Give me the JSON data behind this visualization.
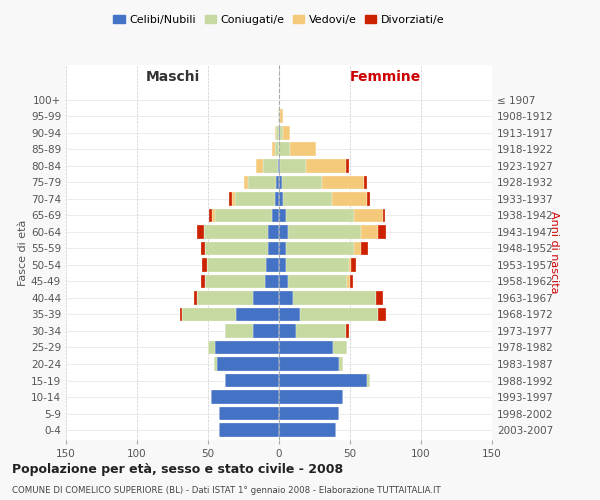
{
  "age_groups": [
    "0-4",
    "5-9",
    "10-14",
    "15-19",
    "20-24",
    "25-29",
    "30-34",
    "35-39",
    "40-44",
    "45-49",
    "50-54",
    "55-59",
    "60-64",
    "65-69",
    "70-74",
    "75-79",
    "80-84",
    "85-89",
    "90-94",
    "95-99",
    "100+"
  ],
  "birth_years": [
    "2003-2007",
    "1998-2002",
    "1993-1997",
    "1988-1992",
    "1983-1987",
    "1978-1982",
    "1973-1977",
    "1968-1972",
    "1963-1967",
    "1958-1962",
    "1953-1957",
    "1948-1952",
    "1943-1947",
    "1938-1942",
    "1933-1937",
    "1928-1932",
    "1923-1927",
    "1918-1922",
    "1913-1917",
    "1908-1912",
    "≤ 1907"
  ],
  "maschi": {
    "celibi": [
      42,
      42,
      48,
      38,
      44,
      45,
      18,
      30,
      18,
      10,
      9,
      8,
      8,
      5,
      3,
      2,
      1,
      0,
      0,
      0,
      0
    ],
    "coniugati": [
      0,
      0,
      0,
      0,
      2,
      5,
      20,
      38,
      40,
      42,
      42,
      44,
      45,
      40,
      28,
      20,
      10,
      3,
      2,
      1,
      0
    ],
    "vedovi": [
      0,
      0,
      0,
      0,
      0,
      0,
      0,
      0,
      0,
      0,
      0,
      0,
      0,
      2,
      2,
      3,
      5,
      2,
      1,
      0,
      0
    ],
    "divorziati": [
      0,
      0,
      0,
      0,
      0,
      0,
      0,
      2,
      2,
      3,
      3,
      3,
      5,
      2,
      2,
      0,
      0,
      0,
      0,
      0,
      0
    ]
  },
  "femmine": {
    "nubili": [
      40,
      42,
      45,
      62,
      42,
      38,
      12,
      15,
      10,
      6,
      5,
      5,
      6,
      5,
      3,
      2,
      1,
      0,
      1,
      0,
      0
    ],
    "coniugate": [
      0,
      0,
      0,
      2,
      3,
      10,
      35,
      55,
      58,
      42,
      44,
      48,
      52,
      48,
      34,
      28,
      18,
      8,
      2,
      1,
      0
    ],
    "vedove": [
      0,
      0,
      0,
      0,
      0,
      0,
      0,
      0,
      0,
      2,
      2,
      5,
      12,
      20,
      25,
      30,
      28,
      18,
      5,
      2,
      0
    ],
    "divorziate": [
      0,
      0,
      0,
      0,
      0,
      0,
      2,
      5,
      5,
      2,
      3,
      5,
      5,
      2,
      2,
      2,
      2,
      0,
      0,
      0,
      0
    ]
  },
  "colors": {
    "celibi_nubili": "#4472c4",
    "coniugati_e": "#c5d9a0",
    "vedovi_e": "#f5c97a",
    "divorziati_e": "#cc2200"
  },
  "title": "Popolazione per età, sesso e stato civile - 2008",
  "subtitle": "COMUNE DI COMELICO SUPERIORE (BL) - Dati ISTAT 1° gennaio 2008 - Elaborazione TUTTAITALIA.IT",
  "xlabel_left": "Maschi",
  "xlabel_right": "Femmine",
  "ylabel_left": "Fasce di età",
  "ylabel_right": "Anni di nascita",
  "xlim": 150,
  "legend": [
    "Celibi/Nubili",
    "Coniugati/e",
    "Vedovi/e",
    "Divorziati/e"
  ],
  "bg_color": "#f8f8f8",
  "plot_bg_color": "#ffffff"
}
